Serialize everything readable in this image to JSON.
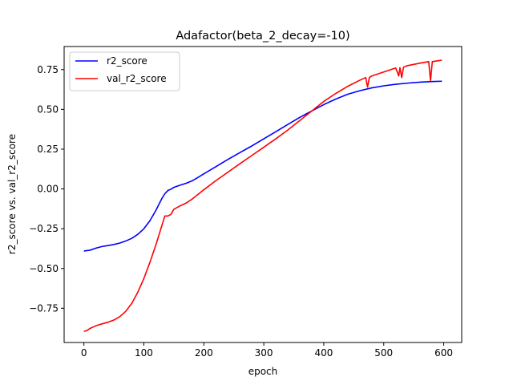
{
  "chart_data": {
    "type": "line",
    "title": "Adafactor(beta_2_decay=-10)",
    "xlabel": "epoch",
    "ylabel": "r2_score vs. val_r2_score",
    "xlim": [
      -33,
      630
    ],
    "ylim": [
      -0.965,
      0.895
    ],
    "xticks": [
      0,
      100,
      200,
      300,
      400,
      500,
      600
    ],
    "yticks": [
      -0.75,
      -0.5,
      -0.25,
      0.0,
      0.25,
      0.5,
      0.75
    ],
    "xtick_labels": [
      "0",
      "100",
      "200",
      "300",
      "400",
      "500",
      "600"
    ],
    "ytick_labels": [
      "−0.75",
      "−0.50",
      "−0.25",
      "0.00",
      "0.25",
      "0.50",
      "0.75"
    ],
    "grid": false,
    "legend_position": "top-left",
    "series": [
      {
        "name": "r2_score",
        "color": "#0000ff",
        "x": [
          0,
          10,
          20,
          30,
          40,
          50,
          60,
          70,
          80,
          90,
          100,
          110,
          120,
          130,
          135,
          140,
          145,
          150,
          160,
          170,
          180,
          190,
          200,
          220,
          240,
          260,
          280,
          300,
          320,
          340,
          360,
          380,
          400,
          420,
          440,
          460,
          480,
          500,
          520,
          540,
          560,
          580,
          597
        ],
        "values": [
          -0.39,
          -0.385,
          -0.372,
          -0.362,
          -0.356,
          -0.349,
          -0.34,
          -0.327,
          -0.31,
          -0.285,
          -0.25,
          -0.2,
          -0.135,
          -0.06,
          -0.03,
          -0.01,
          -0.002,
          0.01,
          0.023,
          0.035,
          0.05,
          0.072,
          0.095,
          0.14,
          0.185,
          0.228,
          0.27,
          0.315,
          0.36,
          0.405,
          0.45,
          0.49,
          0.53,
          0.565,
          0.595,
          0.617,
          0.635,
          0.648,
          0.658,
          0.665,
          0.671,
          0.675,
          0.677
        ]
      },
      {
        "name": "val_r2_score",
        "color": "#ff0000",
        "x": [
          0,
          5,
          10,
          20,
          30,
          40,
          50,
          60,
          70,
          80,
          90,
          100,
          110,
          120,
          130,
          135,
          140,
          145,
          150,
          160,
          170,
          180,
          200,
          220,
          240,
          260,
          280,
          300,
          320,
          340,
          360,
          380,
          400,
          420,
          440,
          460,
          470,
          473,
          476,
          480,
          500,
          520,
          525,
          527,
          530,
          533,
          536,
          540,
          560,
          575,
          578,
          581,
          590,
          597
        ],
        "values": [
          -0.895,
          -0.89,
          -0.877,
          -0.86,
          -0.848,
          -0.838,
          -0.824,
          -0.802,
          -0.768,
          -0.718,
          -0.648,
          -0.563,
          -0.462,
          -0.352,
          -0.23,
          -0.17,
          -0.17,
          -0.16,
          -0.128,
          -0.107,
          -0.09,
          -0.065,
          -0.005,
          0.052,
          0.105,
          0.158,
          0.21,
          0.262,
          0.315,
          0.37,
          0.43,
          0.49,
          0.55,
          0.6,
          0.645,
          0.683,
          0.7,
          0.64,
          0.7,
          0.71,
          0.735,
          0.76,
          0.71,
          0.762,
          0.7,
          0.765,
          0.77,
          0.775,
          0.79,
          0.8,
          0.68,
          0.8,
          0.805,
          0.81
        ]
      }
    ]
  }
}
